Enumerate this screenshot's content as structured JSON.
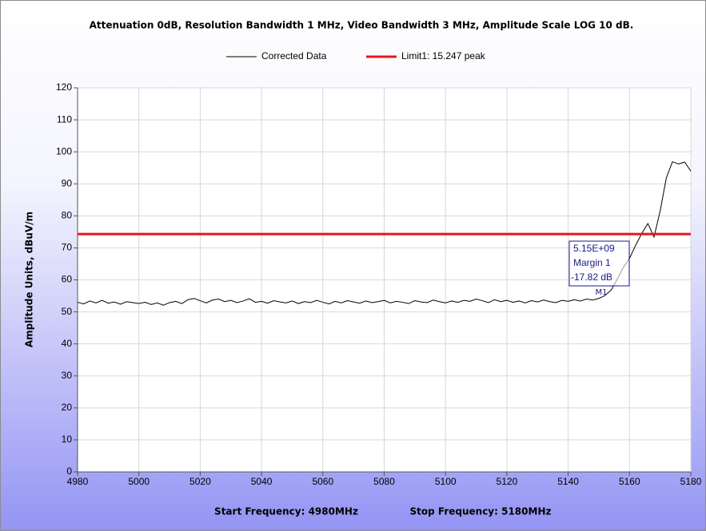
{
  "chart_data": {
    "type": "line",
    "title": "Attenuation 0dB, Resolution Bandwidth 1 MHz, Video Bandwidth 3 MHz, Amplitude Scale LOG 10 dB.",
    "ylabel": "Amplitude Units, dBuV/m",
    "xlabel": [
      "Start Frequency: 4980MHz",
      "Stop Frequency: 5180MHz"
    ],
    "xlim": [
      4980,
      5180
    ],
    "xticks": [
      4980,
      5000,
      5020,
      5040,
      5060,
      5080,
      5100,
      5120,
      5140,
      5160,
      5180
    ],
    "ylim": [
      0,
      120
    ],
    "yticks": [
      0,
      10,
      20,
      30,
      40,
      50,
      60,
      70,
      80,
      90,
      100,
      110,
      120
    ],
    "grid": true,
    "legend": "top",
    "series": [
      {
        "name": "Corrected Data",
        "color": "#000000",
        "x": [
          4980,
          4982,
          4984,
          4986,
          4988,
          4990,
          4992,
          4994,
          4996,
          4998,
          5000,
          5002,
          5004,
          5006,
          5008,
          5010,
          5012,
          5014,
          5016,
          5018,
          5020,
          5022,
          5024,
          5026,
          5028,
          5030,
          5032,
          5034,
          5036,
          5038,
          5040,
          5042,
          5044,
          5046,
          5048,
          5050,
          5052,
          5054,
          5056,
          5058,
          5060,
          5062,
          5064,
          5066,
          5068,
          5070,
          5072,
          5074,
          5076,
          5078,
          5080,
          5082,
          5084,
          5086,
          5088,
          5090,
          5092,
          5094,
          5096,
          5098,
          5100,
          5102,
          5104,
          5106,
          5108,
          5110,
          5112,
          5114,
          5116,
          5118,
          5120,
          5122,
          5124,
          5126,
          5128,
          5130,
          5132,
          5134,
          5136,
          5138,
          5140,
          5142,
          5144,
          5146,
          5148,
          5150,
          5152,
          5154,
          5156,
          5158,
          5160,
          5162,
          5164,
          5166,
          5168,
          5170,
          5172,
          5174,
          5176,
          5178,
          5180
        ],
        "values": [
          53,
          52.5,
          53.4,
          52.8,
          53.6,
          52.7,
          53.1,
          52.4,
          53.2,
          52.9,
          52.6,
          53,
          52.3,
          52.8,
          52.1,
          52.9,
          53.3,
          52.6,
          53.8,
          54.2,
          53.5,
          52.8,
          53.7,
          54,
          53.2,
          53.6,
          52.9,
          53.4,
          54.1,
          53,
          53.3,
          52.7,
          53.5,
          53.1,
          52.8,
          53.4,
          52.6,
          53.2,
          52.9,
          53.6,
          53,
          52.5,
          53.3,
          52.8,
          53.5,
          53.1,
          52.7,
          53.4,
          52.9,
          53.2,
          53.6,
          52.8,
          53.3,
          53,
          52.6,
          53.5,
          53.1,
          52.9,
          53.7,
          53.2,
          52.8,
          53.4,
          53,
          53.6,
          53.3,
          54,
          53.5,
          52.9,
          53.8,
          53.2,
          53.6,
          53,
          53.4,
          52.8,
          53.5,
          53.1,
          53.7,
          53.2,
          52.9,
          53.6,
          53.3,
          53.8,
          53.4,
          54,
          53.7,
          54.2,
          55.1,
          56.8,
          60.2,
          63.9,
          66.7,
          70.8,
          74.5,
          77.6,
          73.4,
          81.5,
          91.8,
          96.9,
          96.2,
          96.8,
          94
        ]
      },
      {
        "name": "Limit1: 15.247 peak",
        "color": "#e8141e",
        "x": [
          4980,
          5180
        ],
        "values": [
          74.3,
          74.3
        ]
      }
    ],
    "annotation": {
      "lines": [
        "5.15E+09",
        "Margin 1",
        "-17.82 dB"
      ],
      "marker": "M1"
    }
  }
}
